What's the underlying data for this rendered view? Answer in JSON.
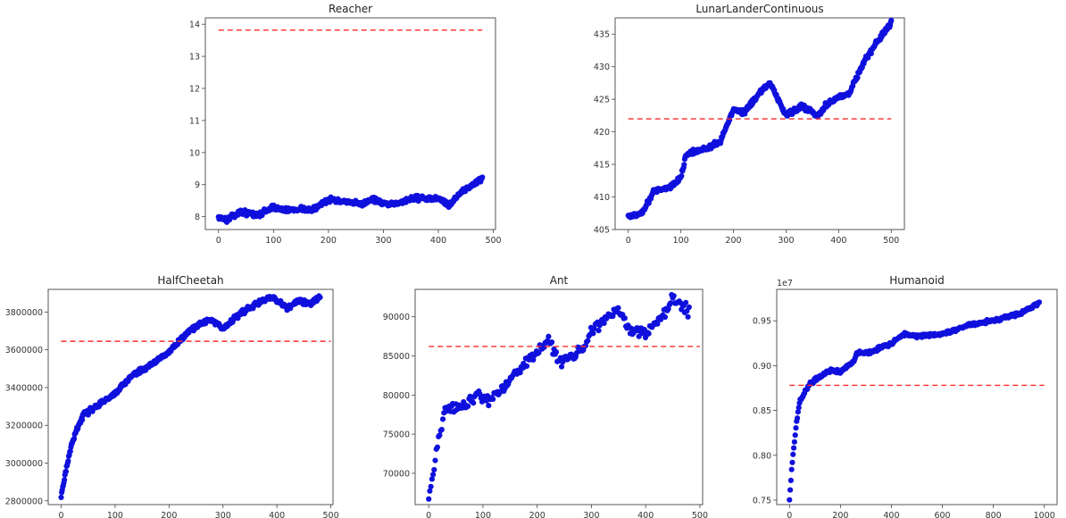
{
  "chart_data": [
    {
      "id": "reacher",
      "type": "scatter",
      "title": "Reacher",
      "xlim": [
        -24,
        504
      ],
      "ylim": [
        7.6,
        14.2
      ],
      "xticks": [
        0,
        100,
        200,
        300,
        400,
        500
      ],
      "yticks": [
        8,
        9,
        10,
        11,
        12,
        13,
        14
      ],
      "x_range": [
        0,
        480
      ],
      "n_points": 480,
      "trend": [
        [
          0,
          8.0
        ],
        [
          15,
          7.9
        ],
        [
          40,
          8.15
        ],
        [
          70,
          8.05
        ],
        [
          100,
          8.3
        ],
        [
          120,
          8.2
        ],
        [
          150,
          8.25
        ],
        [
          170,
          8.2
        ],
        [
          200,
          8.55
        ],
        [
          230,
          8.45
        ],
        [
          260,
          8.4
        ],
        [
          280,
          8.55
        ],
        [
          310,
          8.35
        ],
        [
          330,
          8.45
        ],
        [
          360,
          8.6
        ],
        [
          380,
          8.55
        ],
        [
          400,
          8.6
        ],
        [
          420,
          8.35
        ],
        [
          440,
          8.75
        ],
        [
          480,
          9.2
        ]
      ],
      "noise": 0.07,
      "reference_line": {
        "y": 13.82,
        "x": [
          0,
          480
        ],
        "style": "dashed",
        "color": "#ff2a2a"
      }
    },
    {
      "id": "lunar",
      "type": "scatter",
      "title": "LunarLanderContinuous",
      "xlim": [
        -25,
        525
      ],
      "ylim": [
        405,
        437.5
      ],
      "xticks": [
        0,
        100,
        200,
        300,
        400,
        500
      ],
      "yticks": [
        405,
        410,
        415,
        420,
        425,
        430,
        435
      ],
      "x_range": [
        0,
        500
      ],
      "n_points": 500,
      "trend": [
        [
          0,
          407
        ],
        [
          25,
          407.5
        ],
        [
          50,
          411
        ],
        [
          80,
          411.5
        ],
        [
          100,
          413
        ],
        [
          110,
          416.5
        ],
        [
          150,
          417.5
        ],
        [
          175,
          418.5
        ],
        [
          200,
          423.5
        ],
        [
          220,
          423
        ],
        [
          250,
          426
        ],
        [
          270,
          427.5
        ],
        [
          300,
          422.5
        ],
        [
          330,
          424
        ],
        [
          360,
          422.5
        ],
        [
          380,
          424.5
        ],
        [
          420,
          426
        ],
        [
          450,
          431
        ],
        [
          475,
          434
        ],
        [
          500,
          436.8
        ]
      ],
      "noise": 0.35,
      "reference_line": {
        "y": 422,
        "x": [
          0,
          500
        ],
        "style": "dashed",
        "color": "#ff2a2a"
      }
    },
    {
      "id": "halfcheetah",
      "type": "scatter",
      "title": "HalfCheetah",
      "xlim": [
        -24,
        504
      ],
      "ylim": [
        2780000,
        3920000
      ],
      "xticks": [
        0,
        100,
        200,
        300,
        400,
        500
      ],
      "yticks": [
        2800000,
        3000000,
        3200000,
        3400000,
        3600000,
        3800000
      ],
      "x_range": [
        0,
        480
      ],
      "n_points": 480,
      "trend": [
        [
          0,
          2830000
        ],
        [
          5,
          2900000
        ],
        [
          15,
          3050000
        ],
        [
          25,
          3150000
        ],
        [
          40,
          3250000
        ],
        [
          70,
          3310000
        ],
        [
          100,
          3370000
        ],
        [
          130,
          3460000
        ],
        [
          160,
          3510000
        ],
        [
          200,
          3590000
        ],
        [
          230,
          3680000
        ],
        [
          260,
          3740000
        ],
        [
          280,
          3760000
        ],
        [
          300,
          3710000
        ],
        [
          330,
          3790000
        ],
        [
          360,
          3840000
        ],
        [
          390,
          3880000
        ],
        [
          420,
          3820000
        ],
        [
          440,
          3860000
        ],
        [
          460,
          3840000
        ],
        [
          480,
          3880000
        ]
      ],
      "noise": 12000,
      "reference_line": {
        "y": 3645000,
        "x": [
          0,
          500
        ],
        "style": "dashed",
        "color": "#ff2a2a"
      }
    },
    {
      "id": "ant",
      "type": "scatter",
      "title": "Ant",
      "xlim": [
        -25,
        505
      ],
      "ylim": [
        66000,
        93500
      ],
      "xticks": [
        0,
        100,
        200,
        300,
        400,
        500
      ],
      "yticks": [
        70000,
        75000,
        80000,
        85000,
        90000
      ],
      "x_range": [
        0,
        480
      ],
      "n_points": 240,
      "trend": [
        [
          0,
          67000
        ],
        [
          10,
          70500
        ],
        [
          20,
          75000
        ],
        [
          30,
          78000
        ],
        [
          60,
          78500
        ],
        [
          90,
          80000
        ],
        [
          110,
          79500
        ],
        [
          140,
          81000
        ],
        [
          170,
          83500
        ],
        [
          200,
          85500
        ],
        [
          220,
          87000
        ],
        [
          240,
          84500
        ],
        [
          270,
          85000
        ],
        [
          300,
          88000
        ],
        [
          330,
          90000
        ],
        [
          350,
          91000
        ],
        [
          370,
          88500
        ],
        [
          400,
          88000
        ],
        [
          430,
          90000
        ],
        [
          450,
          92500
        ],
        [
          480,
          90500
        ]
      ],
      "noise": 700,
      "reference_line": {
        "y": 86200,
        "x": [
          0,
          500
        ],
        "style": "dashed",
        "color": "#ff2a2a"
      }
    },
    {
      "id": "humanoid",
      "type": "scatter",
      "title": "Humanoid",
      "offset_label": "1e7",
      "xlim": [
        -50,
        1050
      ],
      "ylim": [
        0.745,
        0.985
      ],
      "xticks": [
        0,
        200,
        400,
        600,
        800,
        1000
      ],
      "yticks": [
        0.75,
        0.8,
        0.85,
        0.9,
        0.95
      ],
      "y_decimals": 2,
      "x_range": [
        0,
        980
      ],
      "n_points": 350,
      "trend": [
        [
          0,
          0.75
        ],
        [
          10,
          0.79
        ],
        [
          25,
          0.83
        ],
        [
          40,
          0.86
        ],
        [
          60,
          0.87
        ],
        [
          80,
          0.88
        ],
        [
          120,
          0.888
        ],
        [
          160,
          0.895
        ],
        [
          200,
          0.893
        ],
        [
          250,
          0.905
        ],
        [
          270,
          0.915
        ],
        [
          320,
          0.915
        ],
        [
          400,
          0.925
        ],
        [
          450,
          0.935
        ],
        [
          500,
          0.933
        ],
        [
          600,
          0.935
        ],
        [
          700,
          0.945
        ],
        [
          800,
          0.95
        ],
        [
          900,
          0.958
        ],
        [
          980,
          0.97
        ]
      ],
      "noise": 0.002,
      "reference_line": {
        "y": 0.878,
        "x": [
          0,
          1000
        ],
        "style": "dashed",
        "color": "#ff2a2a"
      }
    }
  ],
  "colors": {
    "points": "#1010dd",
    "reference": "#ff2a2a",
    "frame": "#444444"
  }
}
